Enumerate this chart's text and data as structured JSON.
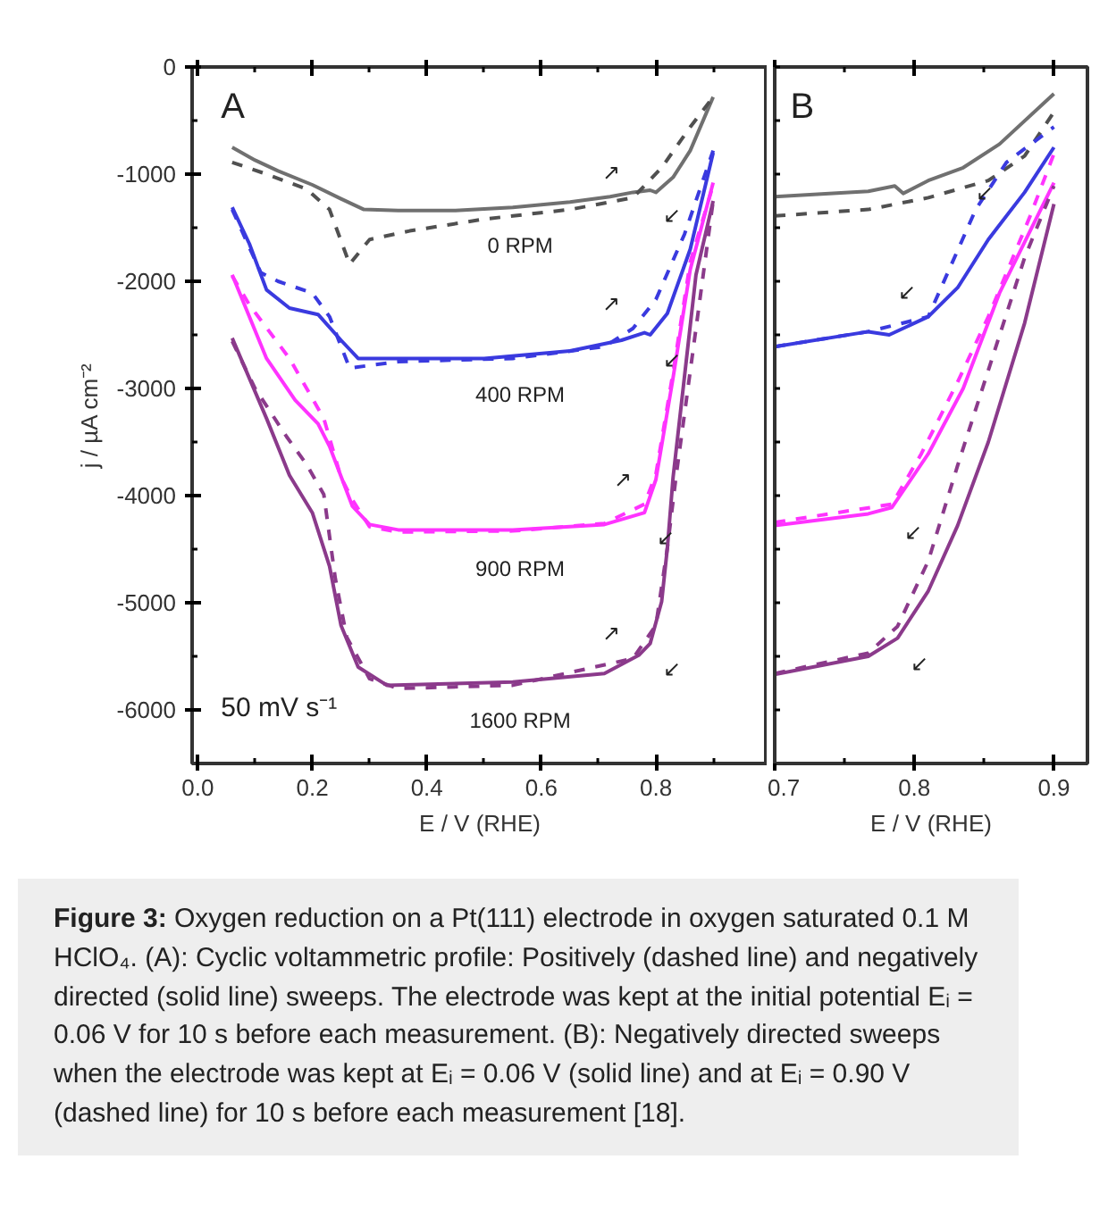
{
  "chart_data": [
    {
      "type": "line",
      "title": "A",
      "xlabel": "E / V (RHE)",
      "ylabel": "j / µA cm⁻²",
      "xlim": [
        -0.01,
        0.995
      ],
      "ylim": [
        -6500,
        0
      ],
      "xticks": [
        {
          "value": 0,
          "label": "0.0"
        },
        {
          "value": 0.1,
          "label": null
        },
        {
          "value": 0.2,
          "label": "0.2"
        },
        {
          "value": 0.3,
          "label": null
        },
        {
          "value": 0.4,
          "label": "0.4"
        },
        {
          "value": 0.5,
          "label": null
        },
        {
          "value": 0.6,
          "label": "0.6"
        },
        {
          "value": 0.7,
          "label": null
        },
        {
          "value": 0.8,
          "label": "0.8"
        },
        {
          "value": 0.9,
          "label": null
        }
      ],
      "yticks": [
        0,
        {
          "value": -500,
          "label": null
        },
        -1000,
        {
          "value": -1500,
          "label": null
        },
        -2000,
        {
          "value": -2500,
          "label": null
        },
        -3000,
        {
          "value": -3500,
          "label": null
        },
        -4000,
        {
          "value": -4500,
          "label": null
        },
        -5000,
        {
          "value": -5500,
          "label": null
        },
        -6000
      ],
      "series": [
        {
          "name": "0 RPM",
          "color": "#707070",
          "line_style": "solid",
          "x": [
            0.06,
            0.1,
            0.14,
            0.2,
            0.25,
            0.29,
            0.35,
            0.45,
            0.55,
            0.65,
            0.72,
            0.76,
            0.79,
            0.8,
            0.83,
            0.86,
            0.9
          ],
          "values": [
            -750,
            -870,
            -970,
            -1100,
            -1230,
            -1330,
            -1340,
            -1340,
            -1310,
            -1260,
            -1210,
            -1170,
            -1150,
            -1170,
            -1030,
            -780,
            -280
          ]
        },
        {
          "color": "#505050",
          "line_style": "dashed",
          "x": [
            0.06,
            0.12,
            0.19,
            0.23,
            0.265,
            0.3,
            0.37,
            0.5,
            0.65,
            0.76,
            0.81,
            0.86,
            0.9
          ],
          "values": [
            -890,
            -1000,
            -1140,
            -1330,
            -1840,
            -1610,
            -1530,
            -1420,
            -1330,
            -1220,
            -940,
            -560,
            -280
          ]
        },
        {
          "name": "400 RPM",
          "color": "#3a3adf",
          "line_style": "solid",
          "x": [
            0.06,
            0.09,
            0.12,
            0.16,
            0.21,
            0.25,
            0.28,
            0.35,
            0.5,
            0.65,
            0.74,
            0.78,
            0.79,
            0.82,
            0.86,
            0.9
          ],
          "values": [
            -1310,
            -1650,
            -2080,
            -2250,
            -2310,
            -2550,
            -2720,
            -2720,
            -2720,
            -2650,
            -2550,
            -2480,
            -2500,
            -2300,
            -1700,
            -800
          ]
        },
        {
          "color": "#3a3adf",
          "line_style": "dashed",
          "x": [
            0.06,
            0.11,
            0.14,
            0.2,
            0.23,
            0.265,
            0.35,
            0.55,
            0.71,
            0.76,
            0.8,
            0.85,
            0.9
          ],
          "values": [
            -1330,
            -1920,
            -2000,
            -2110,
            -2330,
            -2810,
            -2750,
            -2720,
            -2610,
            -2440,
            -2170,
            -1560,
            -780
          ]
        },
        {
          "name": "900 RPM",
          "color": "#ff33ff",
          "line_style": "solid",
          "x": [
            0.06,
            0.12,
            0.17,
            0.21,
            0.23,
            0.27,
            0.3,
            0.35,
            0.55,
            0.71,
            0.78,
            0.8,
            0.83,
            0.86,
            0.9
          ],
          "values": [
            -1940,
            -2720,
            -3110,
            -3330,
            -3540,
            -4100,
            -4270,
            -4320,
            -4320,
            -4270,
            -4160,
            -3850,
            -2900,
            -1890,
            -1080
          ]
        },
        {
          "color": "#ff33ff",
          "line_style": "dashed",
          "x": [
            0.06,
            0.09,
            0.16,
            0.22,
            0.25,
            0.27,
            0.3,
            0.35,
            0.55,
            0.71,
            0.78,
            0.8,
            0.83,
            0.86,
            0.9
          ],
          "values": [
            -1950,
            -2220,
            -2720,
            -3280,
            -3830,
            -4040,
            -4290,
            -4340,
            -4330,
            -4260,
            -4080,
            -3800,
            -2850,
            -1820,
            -1100
          ]
        },
        {
          "name": "1600 RPM",
          "color": "#8b3a8b",
          "line_style": "solid",
          "x": [
            0.06,
            0.12,
            0.16,
            0.2,
            0.23,
            0.25,
            0.28,
            0.33,
            0.55,
            0.71,
            0.77,
            0.79,
            0.81,
            0.82,
            0.83,
            0.87,
            0.9
          ],
          "values": [
            -2530,
            -3280,
            -3810,
            -4160,
            -4660,
            -5210,
            -5600,
            -5770,
            -5740,
            -5660,
            -5490,
            -5380,
            -4990,
            -4490,
            -3830,
            -1940,
            -1250
          ]
        },
        {
          "color": "#8b3a8b",
          "line_style": "dashed",
          "x": [
            0.06,
            0.1,
            0.155,
            0.19,
            0.22,
            0.24,
            0.26,
            0.3,
            0.35,
            0.55,
            0.76,
            0.8,
            0.82,
            0.835,
            0.9
          ],
          "values": [
            -2560,
            -3000,
            -3450,
            -3710,
            -3990,
            -4770,
            -5320,
            -5710,
            -5800,
            -5770,
            -5520,
            -5210,
            -4490,
            -3830,
            -1250
          ]
        }
      ],
      "annotations": [
        "50 mV s⁻¹",
        {
          "text": "↗",
          "x": 0.76,
          "y": -1220
        },
        {
          "text": "↙",
          "x": 0.79,
          "y": -1150
        },
        {
          "text": "↗",
          "x": 0.76,
          "y": -2440
        },
        {
          "text": "↙",
          "x": 0.79,
          "y": -2500
        },
        {
          "text": "↗",
          "x": 0.78,
          "y": -4080
        },
        {
          "text": "↙",
          "x": 0.78,
          "y": -4160
        },
        {
          "text": "↗",
          "x": 0.76,
          "y": -5520
        },
        {
          "text": "↙",
          "x": 0.79,
          "y": -5380
        }
      ]
    },
    {
      "type": "line",
      "title": "B",
      "xlabel": "E / V (RHE)",
      "tick_labels": "x",
      "xlim": [
        0.7,
        0.924
      ],
      "ylim": [
        -6500,
        0
      ],
      "xticks": [
        0.7,
        {
          "value": 0.75,
          "label": null
        },
        0.8,
        {
          "value": 0.85,
          "label": null
        },
        0.9
      ],
      "yticks": [
        {
          "value": 0,
          "label": null
        },
        {
          "value": -500,
          "label": null
        },
        {
          "value": -1000,
          "label": null
        },
        {
          "value": -1500,
          "label": null
        },
        {
          "value": -2000,
          "label": null
        },
        {
          "value": -2500,
          "label": null
        },
        {
          "value": -3000,
          "label": null
        },
        {
          "value": -3500,
          "label": null
        },
        {
          "value": -4000,
          "label": null
        },
        {
          "value": -4500,
          "label": null
        },
        {
          "value": -5000,
          "label": null
        },
        {
          "value": -5500,
          "label": null
        },
        {
          "value": -6000,
          "label": null
        }
      ],
      "series": [
        {
          "color": "#707070",
          "line_style": "solid",
          "x": [
            0.7,
            0.767,
            0.786,
            0.792,
            0.81,
            0.835,
            0.861,
            0.9
          ],
          "values": [
            -1210,
            -1160,
            -1110,
            -1180,
            -1060,
            -940,
            -720,
            -250
          ]
        },
        {
          "color": "#505050",
          "line_style": "dashed",
          "x": [
            0.7,
            0.767,
            0.81,
            0.853,
            0.879,
            0.9
          ],
          "values": [
            -1390,
            -1330,
            -1220,
            -1060,
            -830,
            -420
          ]
        },
        {
          "color": "#3a3adf",
          "line_style": "solid",
          "x": [
            0.7,
            0.767,
            0.782,
            0.81,
            0.831,
            0.853,
            0.879,
            0.9
          ],
          "values": [
            -2610,
            -2470,
            -2500,
            -2330,
            -2060,
            -1610,
            -1170,
            -750
          ]
        },
        {
          "color": "#3a3adf",
          "line_style": "dashed",
          "x": [
            0.7,
            0.767,
            0.81,
            0.827,
            0.844,
            0.866,
            0.9
          ],
          "values": [
            -2610,
            -2470,
            -2330,
            -1830,
            -1330,
            -890,
            -560
          ]
        },
        {
          "color": "#ff33ff",
          "line_style": "solid",
          "x": [
            0.7,
            0.767,
            0.784,
            0.81,
            0.835,
            0.861,
            0.9
          ],
          "values": [
            -4280,
            -4170,
            -4110,
            -3610,
            -3000,
            -2110,
            -1080
          ]
        },
        {
          "color": "#ff33ff",
          "line_style": "dashed",
          "x": [
            0.7,
            0.784,
            0.805,
            0.831,
            0.853,
            0.883,
            0.9
          ],
          "values": [
            -4250,
            -4080,
            -3610,
            -2940,
            -2330,
            -1390,
            -810
          ]
        },
        {
          "color": "#8b3a8b",
          "line_style": "solid",
          "x": [
            0.7,
            0.767,
            0.788,
            0.81,
            0.831,
            0.853,
            0.879,
            0.9
          ],
          "values": [
            -5670,
            -5500,
            -5330,
            -4890,
            -4280,
            -3500,
            -2390,
            -1280
          ]
        },
        {
          "color": "#8b3a8b",
          "line_style": "dashed",
          "x": [
            0.7,
            0.767,
            0.788,
            0.81,
            0.831,
            0.853,
            0.879,
            0.9
          ],
          "values": [
            -5660,
            -5470,
            -5220,
            -4610,
            -3720,
            -2830,
            -1780,
            -1110
          ]
        }
      ],
      "annotations": [
        {
          "text": "↙",
          "x": 0.835,
          "y": -940
        },
        {
          "text": "↙",
          "x": 0.81,
          "y": -2330
        },
        {
          "text": "↙",
          "x": 0.784,
          "y": -4110
        },
        {
          "text": "↙",
          "x": 0.788,
          "y": -5330
        },
        "Figure 3:",
        "Oxygen reduction on a Pt(111) electrode in oxygen saturated 0.1 M HClO₄. (A): Cyclic voltammetric profile: Positively (dashed line) and negatively directed (solid line) sweeps. The electrode was kept at the initial potential Eᵢ = 0.06 V for 10 s before each measurement. (B): Negatively directed sweeps when the electrode was kept at Eᵢ = 0.06 V (solid line) and at Eᵢ = 0.90 V (dashed line) for 10 s before each measurement [18]."
      ]
    }
  ]
}
